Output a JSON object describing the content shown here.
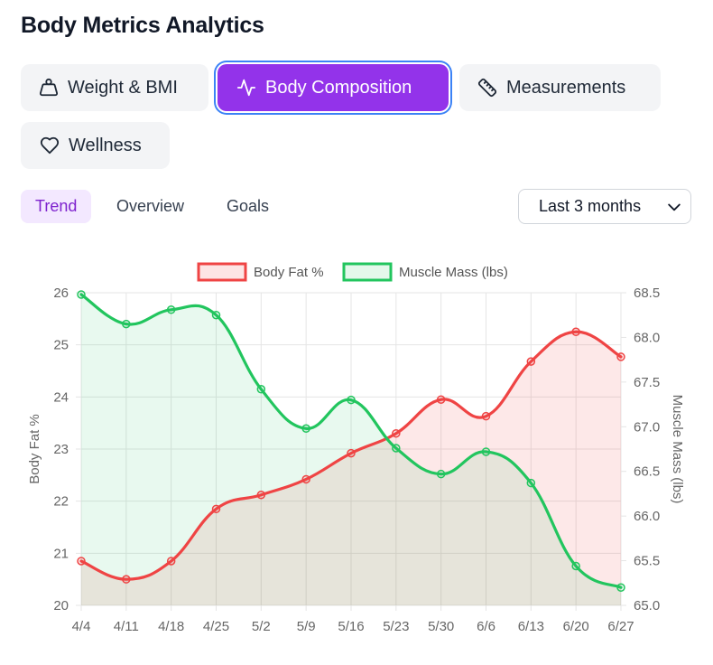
{
  "page": {
    "title": "Body Metrics Analytics"
  },
  "tabs": [
    {
      "label": "Weight & BMI",
      "icon": "weight-icon",
      "active": false
    },
    {
      "label": "Body Composition",
      "icon": "activity-icon",
      "active": true
    },
    {
      "label": "Measurements",
      "icon": "ruler-icon",
      "active": false
    },
    {
      "label": "Wellness",
      "icon": "heart-icon",
      "active": false
    }
  ],
  "subtabs": [
    {
      "label": "Trend",
      "active": true
    },
    {
      "label": "Overview",
      "active": false
    },
    {
      "label": "Goals",
      "active": false
    }
  ],
  "range_select": {
    "value": "Last 3 months"
  },
  "colors": {
    "accent": "#9333ea",
    "body_fat": "#ef4444",
    "muscle_mass": "#22c55e"
  },
  "chart_data": {
    "type": "line",
    "categories": [
      "4/4",
      "4/11",
      "4/18",
      "4/25",
      "5/2",
      "5/9",
      "5/16",
      "5/23",
      "5/30",
      "6/6",
      "6/13",
      "6/20",
      "6/27"
    ],
    "legend_position": "top",
    "grid": true,
    "series": [
      {
        "name": "Body Fat %",
        "axis": "left",
        "color": "#ef4444",
        "fill": true,
        "values": [
          20.85,
          20.5,
          20.85,
          21.85,
          22.12,
          22.42,
          22.92,
          23.3,
          23.95,
          23.63,
          24.68,
          25.25,
          24.77
        ]
      },
      {
        "name": "Muscle Mass (lbs)",
        "axis": "right",
        "color": "#22c55e",
        "fill": true,
        "values": [
          68.48,
          68.15,
          68.31,
          68.25,
          67.42,
          66.98,
          67.3,
          66.76,
          66.47,
          66.72,
          66.37,
          65.44,
          65.2
        ]
      }
    ],
    "y_left": {
      "label": "Body Fat %",
      "min": 20,
      "max": 26,
      "ticks": [
        "20",
        "21",
        "22",
        "23",
        "24",
        "25",
        "26"
      ]
    },
    "y_right": {
      "label": "Muscle Mass (lbs)",
      "min": 65,
      "max": 68.5,
      "ticks": [
        "65.0",
        "65.5",
        "66.0",
        "66.5",
        "67.0",
        "67.5",
        "68.0",
        "68.5"
      ]
    }
  }
}
